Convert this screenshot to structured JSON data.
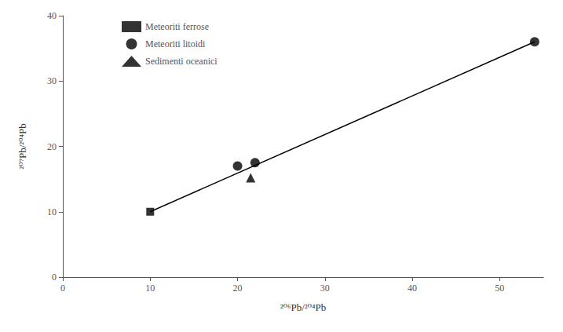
{
  "chart_data": {
    "type": "scatter",
    "title": "",
    "xlabel": "²⁰⁶Pb/²⁰⁴Pb",
    "ylabel": "²⁰⁷Pb/²⁰⁴Pb",
    "xlim": [
      0,
      55
    ],
    "ylim": [
      0,
      40
    ],
    "xticks": [
      0,
      10,
      20,
      30,
      40,
      50
    ],
    "yticks": [
      0,
      10,
      20,
      30,
      40
    ],
    "grid": false,
    "legend": "upper left",
    "series": [
      {
        "type": "line",
        "color": "#000000",
        "x": [
          10,
          54
        ],
        "values": [
          10,
          36
        ]
      },
      {
        "name": "Meteoriti ferrose",
        "type": "scatter",
        "marker": "square",
        "color": "#000000",
        "x": [
          10
        ],
        "values": [
          10
        ]
      },
      {
        "name": "Meteoriti litoidi",
        "type": "scatter",
        "marker": "circle",
        "color": "#000000",
        "x": [
          20,
          22,
          54
        ],
        "values": [
          17,
          17.5,
          36
        ]
      },
      {
        "name": "Sedimenti oceanici",
        "type": "scatter",
        "marker": "triangle",
        "color": "#000000",
        "x": [
          21.5
        ],
        "values": [
          15.2
        ]
      }
    ]
  }
}
